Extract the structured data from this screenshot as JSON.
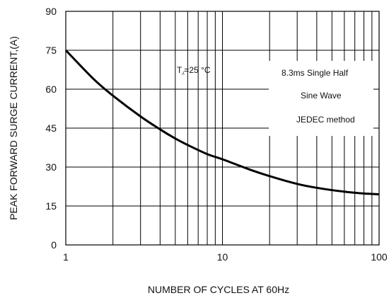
{
  "chart_data": {
    "type": "line",
    "title": "",
    "xlabel": "NUMBER OF CYCLES AT 60Hz",
    "ylabel": "PEAK FORWARD SURGE CURRENT,(A)",
    "x_scale": "log",
    "xlim": [
      1,
      100
    ],
    "ylim": [
      0,
      90
    ],
    "x_ticks": [
      "1",
      "10",
      "100"
    ],
    "y_ticks": [
      "0",
      "15",
      "30",
      "45",
      "60",
      "75",
      "90"
    ],
    "grid": true,
    "series": [
      {
        "x": [
          1,
          1.5,
          2,
          3,
          4,
          5,
          6,
          8,
          10,
          15,
          20,
          30,
          40,
          60,
          80,
          100
        ],
        "y": [
          75,
          64,
          57.5,
          49.5,
          44.5,
          41,
          38.5,
          35,
          33,
          29,
          26.5,
          23.5,
          22,
          20.5,
          19.8,
          19.5
        ]
      }
    ],
    "annotations": {
      "temperature": "T⁁=25 °C",
      "line1": "8.3ms Single Half",
      "line2": "Sine Wave",
      "line3": "JEDEC method"
    }
  }
}
